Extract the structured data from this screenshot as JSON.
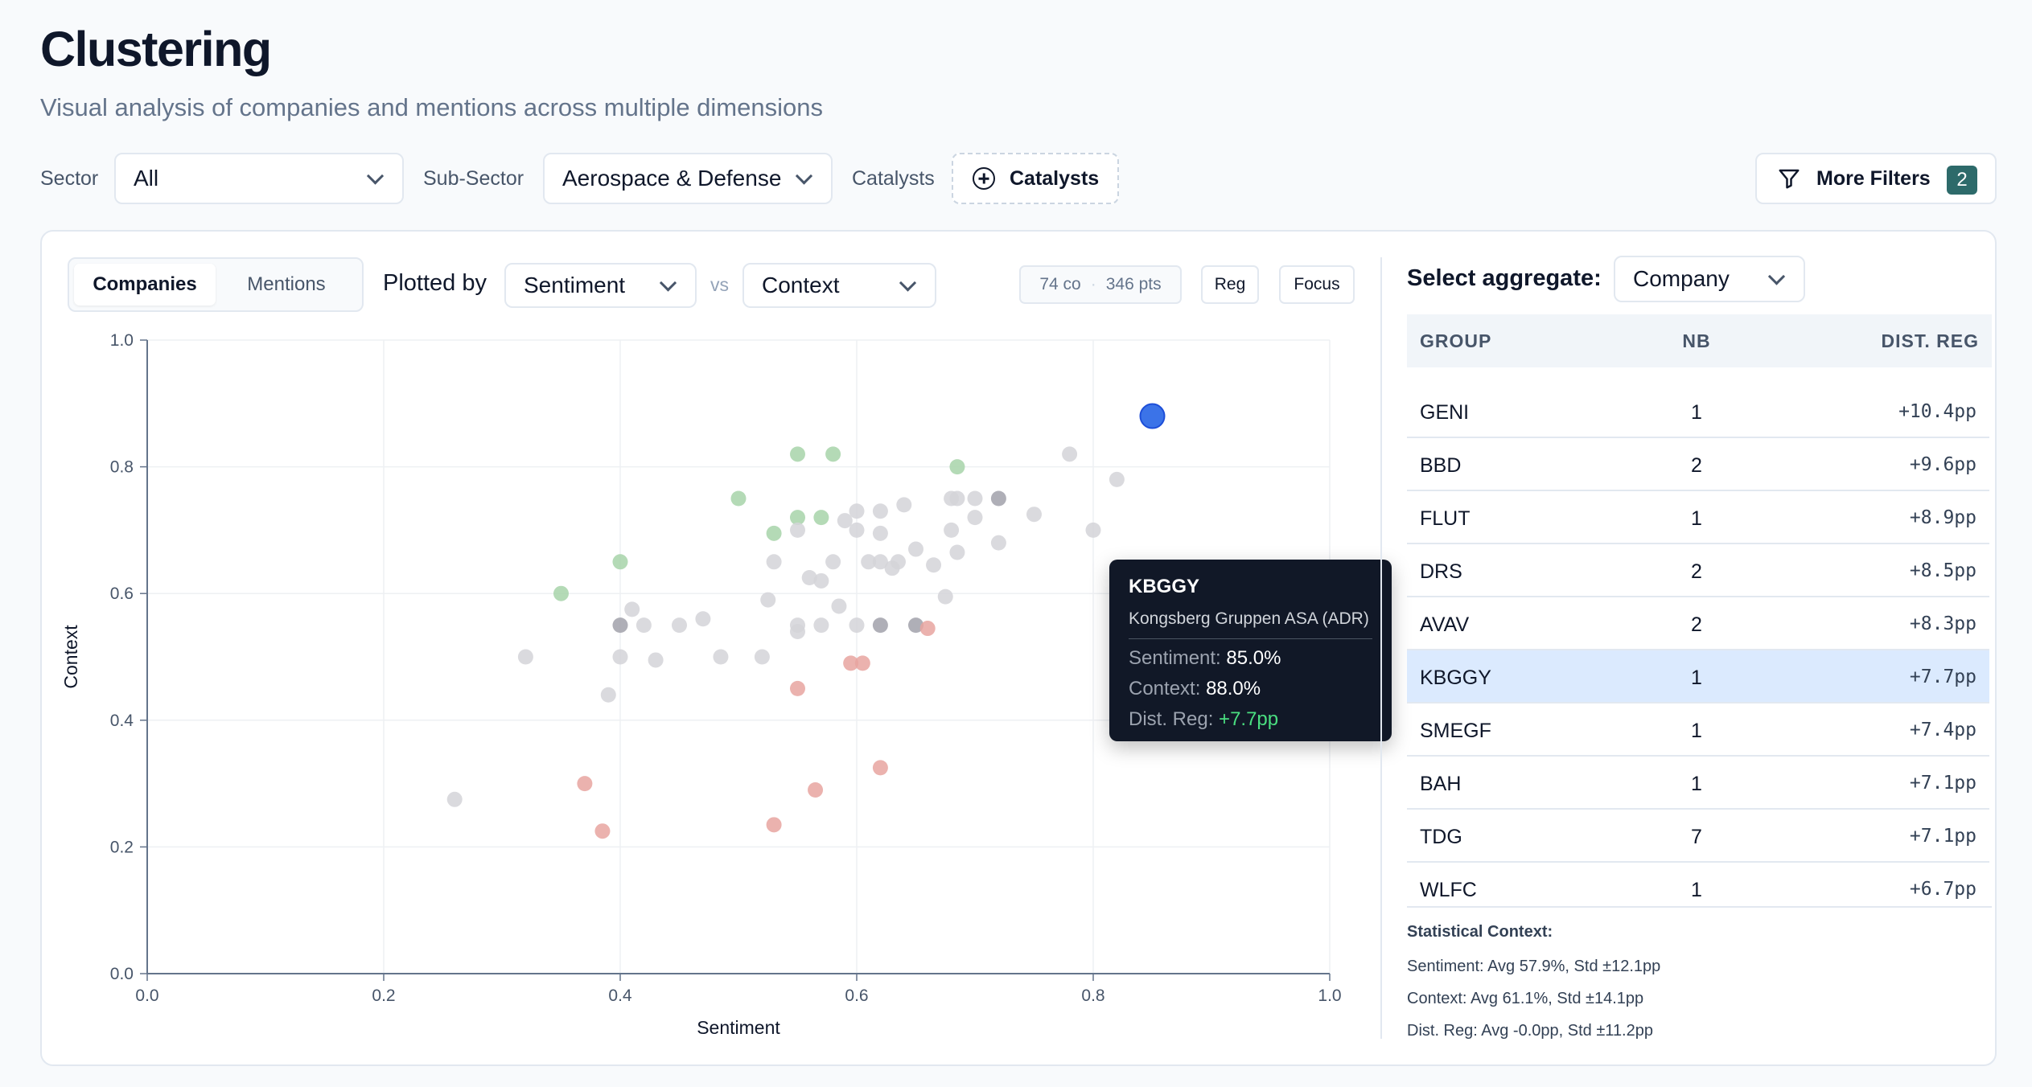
{
  "header": {
    "title": "Clustering",
    "subtitle": "Visual analysis of companies and mentions across multiple dimensions"
  },
  "filters": {
    "sector_label": "Sector",
    "sector_value": "All",
    "subsector_label": "Sub-Sector",
    "subsector_value": "Aerospace & Defense",
    "catalysts_label": "Catalysts",
    "catalysts_button": "Catalysts",
    "more_filters_label": "More Filters",
    "more_filters_count": "2"
  },
  "chart_toolbar": {
    "tabs": [
      "Companies",
      "Mentions"
    ],
    "active_tab": "Companies",
    "plotted_by_label": "Plotted by",
    "x_metric": "Sentiment",
    "vs_label": "vs",
    "y_metric": "Context",
    "companies_count": "74 co",
    "points_count": "346 pts",
    "reg_button": "Reg",
    "focus_button": "Focus"
  },
  "tooltip": {
    "ticker": "KBGGY",
    "name": "Kongsberg Gruppen ASA (ADR)",
    "sentiment_label": "Sentiment:",
    "sentiment_value": "85.0%",
    "context_label": "Context:",
    "context_value": "88.0%",
    "distreg_label": "Dist. Reg:",
    "distreg_value": "+7.7pp"
  },
  "chart_data": {
    "type": "scatter",
    "title": "",
    "xlabel": "Sentiment",
    "ylabel": "Context",
    "xlim": [
      0,
      1
    ],
    "ylim": [
      0,
      1
    ],
    "xticks": [
      "0.0",
      "0.2",
      "0.4",
      "0.6",
      "0.8",
      "1.0"
    ],
    "yticks": [
      "0.0",
      "0.2",
      "0.4",
      "0.6",
      "0.8",
      "1.0"
    ],
    "grid": true,
    "colors": {
      "neutral": "#d4d4d8",
      "neutral_dark": "#a1a1aa",
      "positive": "#a7d3a9",
      "negative": "#e8a5a0",
      "highlight": "#3b73e8"
    },
    "points": [
      {
        "x": 0.26,
        "y": 0.275,
        "c": "neutral"
      },
      {
        "x": 0.32,
        "y": 0.5,
        "c": "neutral"
      },
      {
        "x": 0.35,
        "y": 0.6,
        "c": "positive"
      },
      {
        "x": 0.37,
        "y": 0.3,
        "c": "negative"
      },
      {
        "x": 0.385,
        "y": 0.225,
        "c": "negative"
      },
      {
        "x": 0.39,
        "y": 0.44,
        "c": "neutral"
      },
      {
        "x": 0.4,
        "y": 0.55,
        "c": "neutral_dark"
      },
      {
        "x": 0.4,
        "y": 0.5,
        "c": "neutral"
      },
      {
        "x": 0.4,
        "y": 0.65,
        "c": "positive"
      },
      {
        "x": 0.41,
        "y": 0.575,
        "c": "neutral"
      },
      {
        "x": 0.42,
        "y": 0.55,
        "c": "neutral"
      },
      {
        "x": 0.43,
        "y": 0.495,
        "c": "neutral"
      },
      {
        "x": 0.45,
        "y": 0.55,
        "c": "neutral"
      },
      {
        "x": 0.47,
        "y": 0.56,
        "c": "neutral"
      },
      {
        "x": 0.485,
        "y": 0.5,
        "c": "neutral"
      },
      {
        "x": 0.5,
        "y": 0.75,
        "c": "positive"
      },
      {
        "x": 0.52,
        "y": 0.5,
        "c": "neutral"
      },
      {
        "x": 0.525,
        "y": 0.59,
        "c": "neutral"
      },
      {
        "x": 0.53,
        "y": 0.235,
        "c": "negative"
      },
      {
        "x": 0.53,
        "y": 0.65,
        "c": "neutral"
      },
      {
        "x": 0.53,
        "y": 0.695,
        "c": "positive"
      },
      {
        "x": 0.55,
        "y": 0.82,
        "c": "positive"
      },
      {
        "x": 0.55,
        "y": 0.72,
        "c": "positive"
      },
      {
        "x": 0.55,
        "y": 0.7,
        "c": "neutral"
      },
      {
        "x": 0.55,
        "y": 0.55,
        "c": "neutral"
      },
      {
        "x": 0.55,
        "y": 0.54,
        "c": "neutral"
      },
      {
        "x": 0.55,
        "y": 0.45,
        "c": "negative"
      },
      {
        "x": 0.56,
        "y": 0.625,
        "c": "neutral"
      },
      {
        "x": 0.565,
        "y": 0.29,
        "c": "negative"
      },
      {
        "x": 0.57,
        "y": 0.55,
        "c": "neutral"
      },
      {
        "x": 0.57,
        "y": 0.62,
        "c": "neutral"
      },
      {
        "x": 0.57,
        "y": 0.72,
        "c": "positive"
      },
      {
        "x": 0.58,
        "y": 0.82,
        "c": "positive"
      },
      {
        "x": 0.58,
        "y": 0.65,
        "c": "neutral"
      },
      {
        "x": 0.585,
        "y": 0.58,
        "c": "neutral"
      },
      {
        "x": 0.59,
        "y": 0.715,
        "c": "neutral"
      },
      {
        "x": 0.595,
        "y": 0.49,
        "c": "negative"
      },
      {
        "x": 0.6,
        "y": 0.73,
        "c": "neutral"
      },
      {
        "x": 0.6,
        "y": 0.7,
        "c": "neutral"
      },
      {
        "x": 0.6,
        "y": 0.55,
        "c": "neutral"
      },
      {
        "x": 0.605,
        "y": 0.49,
        "c": "negative"
      },
      {
        "x": 0.61,
        "y": 0.65,
        "c": "neutral"
      },
      {
        "x": 0.62,
        "y": 0.73,
        "c": "neutral"
      },
      {
        "x": 0.62,
        "y": 0.695,
        "c": "neutral"
      },
      {
        "x": 0.62,
        "y": 0.65,
        "c": "neutral"
      },
      {
        "x": 0.62,
        "y": 0.55,
        "c": "neutral_dark"
      },
      {
        "x": 0.62,
        "y": 0.325,
        "c": "negative"
      },
      {
        "x": 0.63,
        "y": 0.64,
        "c": "neutral"
      },
      {
        "x": 0.635,
        "y": 0.65,
        "c": "neutral"
      },
      {
        "x": 0.64,
        "y": 0.74,
        "c": "neutral"
      },
      {
        "x": 0.65,
        "y": 0.67,
        "c": "neutral"
      },
      {
        "x": 0.65,
        "y": 0.55,
        "c": "neutral_dark"
      },
      {
        "x": 0.66,
        "y": 0.545,
        "c": "negative"
      },
      {
        "x": 0.665,
        "y": 0.645,
        "c": "neutral"
      },
      {
        "x": 0.675,
        "y": 0.595,
        "c": "neutral"
      },
      {
        "x": 0.68,
        "y": 0.75,
        "c": "neutral"
      },
      {
        "x": 0.68,
        "y": 0.7,
        "c": "neutral"
      },
      {
        "x": 0.685,
        "y": 0.665,
        "c": "neutral"
      },
      {
        "x": 0.685,
        "y": 0.75,
        "c": "neutral"
      },
      {
        "x": 0.685,
        "y": 0.8,
        "c": "positive"
      },
      {
        "x": 0.7,
        "y": 0.75,
        "c": "neutral"
      },
      {
        "x": 0.7,
        "y": 0.72,
        "c": "neutral"
      },
      {
        "x": 0.72,
        "y": 0.75,
        "c": "neutral_dark"
      },
      {
        "x": 0.72,
        "y": 0.68,
        "c": "neutral"
      },
      {
        "x": 0.75,
        "y": 0.725,
        "c": "neutral"
      },
      {
        "x": 0.78,
        "y": 0.82,
        "c": "neutral"
      },
      {
        "x": 0.8,
        "y": 0.7,
        "c": "neutral"
      },
      {
        "x": 0.82,
        "y": 0.78,
        "c": "neutral"
      },
      {
        "x": 0.85,
        "y": 0.88,
        "c": "highlight"
      }
    ]
  },
  "aggregate": {
    "label": "Select aggregate:",
    "value": "Company",
    "columns": {
      "group": "GROUP",
      "nb": "NB",
      "dist": "DIST. REG"
    },
    "rows": [
      {
        "group": "GENI",
        "nb": "1",
        "dist": "+10.4pp"
      },
      {
        "group": "BBD",
        "nb": "2",
        "dist": "+9.6pp"
      },
      {
        "group": "FLUT",
        "nb": "1",
        "dist": "+8.9pp"
      },
      {
        "group": "DRS",
        "nb": "2",
        "dist": "+8.5pp"
      },
      {
        "group": "AVAV",
        "nb": "2",
        "dist": "+8.3pp"
      },
      {
        "group": "KBGGY",
        "nb": "1",
        "dist": "+7.7pp"
      },
      {
        "group": "SMEGF",
        "nb": "1",
        "dist": "+7.4pp"
      },
      {
        "group": "BAH",
        "nb": "1",
        "dist": "+7.1pp"
      },
      {
        "group": "TDG",
        "nb": "7",
        "dist": "+7.1pp"
      },
      {
        "group": "WLFC",
        "nb": "1",
        "dist": "+6.7pp"
      }
    ],
    "highlighted": "KBGGY"
  },
  "stats": {
    "heading": "Statistical Context:",
    "sentiment_label": "Sentiment:",
    "sentiment_value": "Avg 57.9%, Std ±12.1pp",
    "context_label": "Context:",
    "context_value": "Avg 61.1%, Std ±14.1pp",
    "distreg_label": "Dist. Reg:",
    "distreg_value": "Avg -0.0pp, Std ±11.2pp"
  }
}
